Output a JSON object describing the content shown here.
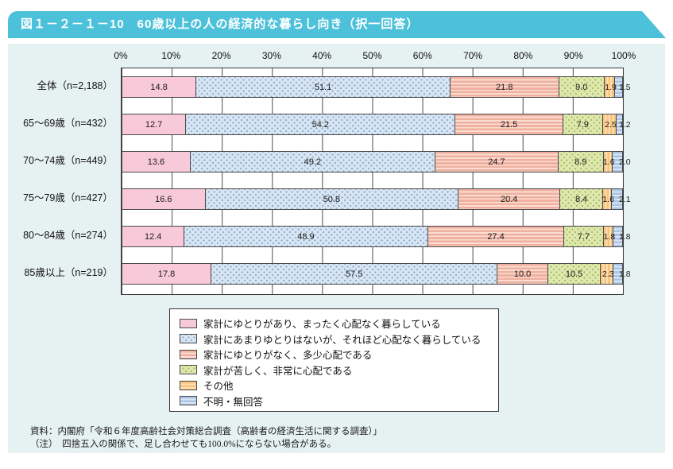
{
  "figure": {
    "title": "図１－２－１－10　60歳以上の人の経済的な暮らし向き（択一回答）"
  },
  "chart_data": {
    "type": "bar",
    "variant": "horizontal-stacked-100pct",
    "unit": "%",
    "grid": "vertical-lines-every-10pct",
    "legend_position": "bottom-box",
    "x_axis": {
      "range": [
        0,
        100
      ],
      "tick_labels": [
        "0%",
        "10%",
        "20%",
        "30%",
        "40%",
        "50%",
        "60%",
        "70%",
        "80%",
        "90%",
        "100%"
      ]
    },
    "categories": [
      "全体（n=2,188）",
      "65～69歳（n=432）",
      "70～74歳（n=449）",
      "75～79歳（n=427）",
      "80～84歳（n=274）",
      "85歳以上（n=219）"
    ],
    "series": [
      {
        "name": "家計にゆとりがあり、まったく心配なく暮らしている",
        "pattern": "pink-solid",
        "color": "#f8c9d9",
        "values": [
          14.8,
          12.7,
          13.6,
          16.6,
          12.4,
          17.8
        ]
      },
      {
        "name": "家計にあまりゆとりはないが、それほど心配なく暮らしている",
        "pattern": "blue-dots",
        "color": "#d8e6f4",
        "values": [
          51.1,
          54.2,
          49.2,
          50.8,
          48.9,
          57.5
        ]
      },
      {
        "name": "家計にゆとりがなく、多少心配である",
        "pattern": "salmon-stripes",
        "color": "#efb0a0",
        "values": [
          21.8,
          21.5,
          24.7,
          20.4,
          27.4,
          10.0
        ]
      },
      {
        "name": "家計が苦しく、非常に心配である",
        "pattern": "green-dots",
        "color": "#dfe9ad",
        "values": [
          9.0,
          7.9,
          8.9,
          8.4,
          7.7,
          10.5
        ]
      },
      {
        "name": "その他",
        "pattern": "orange-stripes",
        "color": "#f9c37c",
        "values": [
          1.9,
          2.5,
          1.6,
          1.6,
          1.8,
          2.3
        ]
      },
      {
        "name": "不明・無回答",
        "pattern": "blue-stripes",
        "color": "#abc5e6",
        "values": [
          1.5,
          1.2,
          2.0,
          2.1,
          1.8,
          1.8
        ]
      }
    ]
  },
  "footer": {
    "source": "資料：内閣府「令和６年度高齢社会対策総合調査（高齢者の経済生活に関する調査）」",
    "note": "（注）　四捨五入の関係で、足し合わせても100.0%にならない場合がある。"
  },
  "colors": {
    "banner": "#4cc1d9",
    "card_bg": "#e6f2f1",
    "plot_border": "#3c3c3c"
  }
}
